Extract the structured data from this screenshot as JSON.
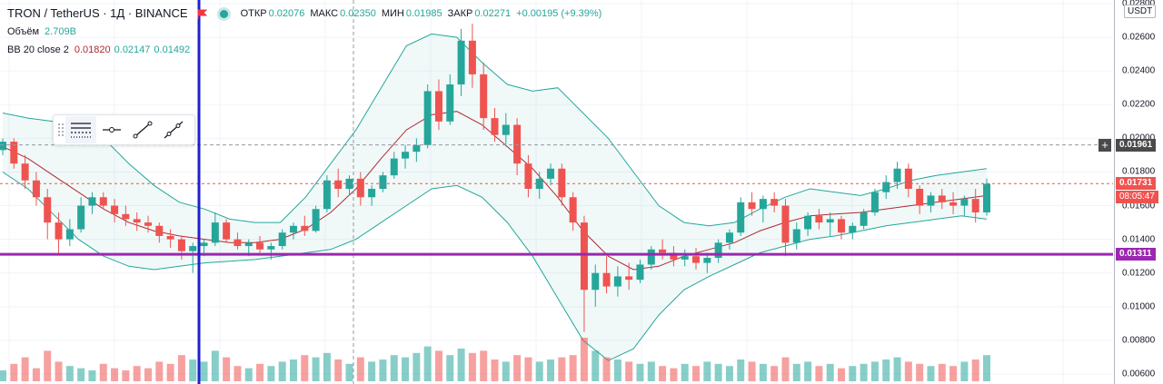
{
  "header": {
    "symbol_title": "TRON / TetherUS · 1Д · BINANCE",
    "ohlc": {
      "open_label": "ОТКР",
      "open": "0.02076",
      "high_label": "МАКС",
      "high": "0.02350",
      "low_label": "МИН",
      "low": "0.01985",
      "close_label": "ЗАКР",
      "close": "0.02271",
      "change": "+0.00195 (+9.39%)"
    },
    "volume_label": "Объём",
    "volume_value": "2.709B",
    "bb_label": "BB 20 close 2",
    "bb_basis": "0.01820",
    "bb_upper": "0.02147",
    "bb_lower": "0.01492"
  },
  "price_axis": {
    "currency": "USDT",
    "ticks": [
      "0.02800",
      "0.02600",
      "0.02400",
      "0.02200",
      "0.02000",
      "0.01800",
      "0.01600",
      "0.01400",
      "0.01200",
      "0.01000",
      "0.00800",
      "0.00600"
    ],
    "crosshair_price": "0.01961",
    "last_price": "0.01731",
    "countdown": "08:05:47",
    "hline_price": "0.01311"
  },
  "colors": {
    "up": "#26a69a",
    "down": "#ef5350",
    "bb_band": "#26a69a",
    "bb_fill": "rgba(38,166,154,0.07)",
    "bb_basis": "#b22833",
    "hline": "#9c27b0",
    "vline": "#1f1fd1",
    "last_price": "#ef5350"
  },
  "toolbar": {
    "icons": [
      "drag-grip-icon",
      "line-style-icon",
      "horizontal-line-icon",
      "trend-line-icon",
      "extended-line-icon"
    ]
  },
  "chart_data": {
    "type": "candlestick",
    "ylim": [
      0.006,
      0.028
    ],
    "scale_note": "prices read off right axis; candles are daily",
    "candles": [
      [
        0.0193,
        0.02,
        0.019,
        0.0198
      ],
      [
        0.0198,
        0.02,
        0.0182,
        0.0185
      ],
      [
        0.0185,
        0.019,
        0.017,
        0.0175
      ],
      [
        0.0175,
        0.018,
        0.016,
        0.0165
      ],
      [
        0.0165,
        0.017,
        0.014,
        0.015
      ],
      [
        0.015,
        0.0156,
        0.0132,
        0.014
      ],
      [
        0.014,
        0.0152,
        0.0136,
        0.0146
      ],
      [
        0.0146,
        0.0165,
        0.0144,
        0.016
      ],
      [
        0.016,
        0.0168,
        0.0155,
        0.0165
      ],
      [
        0.0165,
        0.0168,
        0.0158,
        0.016
      ],
      [
        0.016,
        0.0164,
        0.015,
        0.0155
      ],
      [
        0.0155,
        0.016,
        0.0148,
        0.0152
      ],
      [
        0.0152,
        0.0156,
        0.0145,
        0.015
      ],
      [
        0.015,
        0.0154,
        0.0144,
        0.0148
      ],
      [
        0.0148,
        0.015,
        0.0138,
        0.0142
      ],
      [
        0.0142,
        0.0146,
        0.0135,
        0.014
      ],
      [
        0.014,
        0.0142,
        0.0128,
        0.0133
      ],
      [
        0.0133,
        0.0138,
        0.012,
        0.0136
      ],
      [
        0.0136,
        0.014,
        0.013,
        0.0138
      ],
      [
        0.0138,
        0.0156,
        0.0136,
        0.015
      ],
      [
        0.015,
        0.0152,
        0.0138,
        0.014
      ],
      [
        0.014,
        0.0144,
        0.0134,
        0.0136
      ],
      [
        0.0136,
        0.014,
        0.013,
        0.0138
      ],
      [
        0.0138,
        0.0142,
        0.0132,
        0.0134
      ],
      [
        0.0134,
        0.0138,
        0.0128,
        0.0136
      ],
      [
        0.0136,
        0.0146,
        0.0134,
        0.0144
      ],
      [
        0.0144,
        0.015,
        0.014,
        0.0148
      ],
      [
        0.0148,
        0.0154,
        0.0142,
        0.0145
      ],
      [
        0.0145,
        0.016,
        0.0144,
        0.0158
      ],
      [
        0.0158,
        0.0178,
        0.0156,
        0.0175
      ],
      [
        0.0175,
        0.0182,
        0.0165,
        0.017
      ],
      [
        0.017,
        0.0178,
        0.0166,
        0.0176
      ],
      [
        0.0176,
        0.018,
        0.016,
        0.0165
      ],
      [
        0.0165,
        0.0172,
        0.016,
        0.017
      ],
      [
        0.017,
        0.018,
        0.0168,
        0.0178
      ],
      [
        0.0178,
        0.0192,
        0.0176,
        0.0188
      ],
      [
        0.0188,
        0.0196,
        0.0182,
        0.0192
      ],
      [
        0.0192,
        0.02,
        0.0186,
        0.0196
      ],
      [
        0.0196,
        0.0232,
        0.0194,
        0.0228
      ],
      [
        0.0228,
        0.0235,
        0.0205,
        0.021
      ],
      [
        0.021,
        0.0238,
        0.0208,
        0.0232
      ],
      [
        0.0232,
        0.0265,
        0.0225,
        0.0258
      ],
      [
        0.0258,
        0.0268,
        0.023,
        0.0238
      ],
      [
        0.0238,
        0.0245,
        0.0205,
        0.0212
      ],
      [
        0.0212,
        0.0218,
        0.0198,
        0.0202
      ],
      [
        0.0202,
        0.0215,
        0.0195,
        0.0208
      ],
      [
        0.0208,
        0.0212,
        0.0178,
        0.0185
      ],
      [
        0.0185,
        0.019,
        0.0165,
        0.017
      ],
      [
        0.017,
        0.018,
        0.0164,
        0.0176
      ],
      [
        0.0176,
        0.0185,
        0.0172,
        0.0182
      ],
      [
        0.0182,
        0.0185,
        0.016,
        0.0165
      ],
      [
        0.0165,
        0.0168,
        0.0145,
        0.015
      ],
      [
        0.015,
        0.0154,
        0.0085,
        0.011
      ],
      [
        0.011,
        0.0125,
        0.01,
        0.012
      ],
      [
        0.012,
        0.013,
        0.0108,
        0.0112
      ],
      [
        0.0112,
        0.0124,
        0.0106,
        0.0118
      ],
      [
        0.0118,
        0.0126,
        0.011,
        0.0116
      ],
      [
        0.0116,
        0.0128,
        0.0114,
        0.0125
      ],
      [
        0.0125,
        0.0136,
        0.0122,
        0.0134
      ],
      [
        0.0134,
        0.014,
        0.0128,
        0.0132
      ],
      [
        0.0132,
        0.0136,
        0.0124,
        0.0128
      ],
      [
        0.0128,
        0.0134,
        0.0124,
        0.013
      ],
      [
        0.013,
        0.0135,
        0.0122,
        0.0126
      ],
      [
        0.0126,
        0.0132,
        0.012,
        0.0129
      ],
      [
        0.0129,
        0.014,
        0.0126,
        0.0138
      ],
      [
        0.0138,
        0.0146,
        0.0134,
        0.0144
      ],
      [
        0.0144,
        0.0165,
        0.0142,
        0.0162
      ],
      [
        0.0162,
        0.0168,
        0.0154,
        0.0158
      ],
      [
        0.0158,
        0.0166,
        0.015,
        0.0164
      ],
      [
        0.0164,
        0.0168,
        0.0156,
        0.016
      ],
      [
        0.016,
        0.0164,
        0.013,
        0.0138
      ],
      [
        0.0138,
        0.015,
        0.0134,
        0.0146
      ],
      [
        0.0146,
        0.0156,
        0.0142,
        0.0154
      ],
      [
        0.0154,
        0.0158,
        0.0146,
        0.015
      ],
      [
        0.015,
        0.0156,
        0.0142,
        0.0152
      ],
      [
        0.0152,
        0.0154,
        0.014,
        0.0144
      ],
      [
        0.0144,
        0.015,
        0.014,
        0.0148
      ],
      [
        0.0148,
        0.0158,
        0.0146,
        0.0156
      ],
      [
        0.0156,
        0.017,
        0.0154,
        0.0168
      ],
      [
        0.0168,
        0.0178,
        0.0164,
        0.0174
      ],
      [
        0.0174,
        0.0186,
        0.017,
        0.0182
      ],
      [
        0.0182,
        0.0185,
        0.0165,
        0.017
      ],
      [
        0.017,
        0.0172,
        0.0155,
        0.016
      ],
      [
        0.016,
        0.0168,
        0.0156,
        0.0166
      ],
      [
        0.0166,
        0.017,
        0.0158,
        0.0162
      ],
      [
        0.0162,
        0.0168,
        0.0155,
        0.016
      ],
      [
        0.016,
        0.0166,
        0.0154,
        0.0164
      ],
      [
        0.0164,
        0.017,
        0.015,
        0.0156
      ],
      [
        0.0156,
        0.0176,
        0.0154,
        0.0173
      ]
    ],
    "volumes": [
      0.25,
      0.4,
      0.55,
      0.3,
      0.7,
      0.45,
      0.35,
      0.3,
      0.25,
      0.4,
      0.3,
      0.25,
      0.35,
      0.3,
      0.45,
      0.4,
      0.6,
      0.5,
      0.45,
      0.7,
      0.55,
      0.35,
      0.3,
      0.4,
      0.35,
      0.45,
      0.5,
      0.6,
      0.55,
      0.65,
      0.5,
      0.4,
      0.55,
      0.45,
      0.5,
      0.6,
      0.55,
      0.65,
      0.8,
      0.7,
      0.6,
      0.75,
      0.65,
      0.7,
      0.5,
      0.45,
      0.6,
      0.55,
      0.45,
      0.5,
      0.55,
      0.6,
      1.0,
      0.7,
      0.55,
      0.5,
      0.45,
      0.4,
      0.45,
      0.35,
      0.3,
      0.4,
      0.35,
      0.45,
      0.4,
      0.35,
      0.5,
      0.45,
      0.4,
      0.35,
      0.55,
      0.4,
      0.45,
      0.35,
      0.4,
      0.3,
      0.35,
      0.4,
      0.45,
      0.5,
      0.55,
      0.45,
      0.4,
      0.35,
      0.4,
      0.35,
      0.45,
      0.5,
      0.6
    ],
    "bb_upper": [
      0.0215,
      0.0212,
      0.021,
      0.0208,
      0.02,
      0.0185,
      0.0172,
      0.0162,
      0.0158,
      0.0152,
      0.015,
      0.015,
      0.0165,
      0.0185,
      0.0205,
      0.023,
      0.0255,
      0.0262,
      0.026,
      0.0245,
      0.0232,
      0.0228,
      0.023,
      0.0215,
      0.02,
      0.018,
      0.016,
      0.015,
      0.0148,
      0.015,
      0.0158,
      0.0165,
      0.017,
      0.0168,
      0.0166,
      0.017,
      0.0175,
      0.0178,
      0.018,
      0.0182
    ],
    "bb_lower": [
      0.018,
      0.017,
      0.0155,
      0.014,
      0.013,
      0.0124,
      0.0122,
      0.0124,
      0.0126,
      0.0127,
      0.0128,
      0.013,
      0.0132,
      0.0134,
      0.014,
      0.015,
      0.016,
      0.017,
      0.0172,
      0.0165,
      0.015,
      0.013,
      0.0105,
      0.008,
      0.0068,
      0.0075,
      0.0095,
      0.011,
      0.0118,
      0.0125,
      0.0132,
      0.0136,
      0.014,
      0.0142,
      0.0145,
      0.0148,
      0.015,
      0.0152,
      0.0154,
      0.0152
    ],
    "bb_basis": [
      0.0195,
      0.0188,
      0.0178,
      0.0168,
      0.0158,
      0.015,
      0.0145,
      0.0142,
      0.014,
      0.0138,
      0.0138,
      0.014,
      0.0146,
      0.0156,
      0.017,
      0.0188,
      0.0205,
      0.0214,
      0.0216,
      0.0208,
      0.0195,
      0.0182,
      0.0165,
      0.0145,
      0.013,
      0.0122,
      0.0124,
      0.013,
      0.0134,
      0.0138,
      0.0145,
      0.015,
      0.0154,
      0.0155,
      0.0156,
      0.0158,
      0.016,
      0.0162,
      0.0164,
      0.0166
    ],
    "horizontal_line": 0.01311,
    "crosshair_price": 0.01961,
    "last_price": 0.01731
  }
}
